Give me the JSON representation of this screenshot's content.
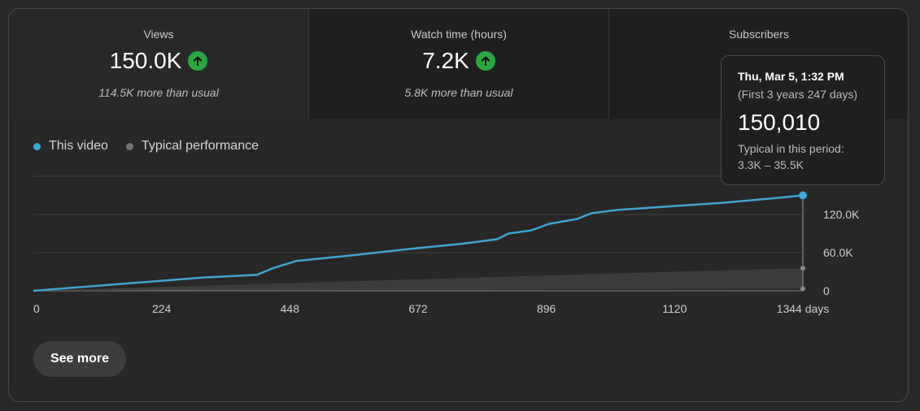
{
  "tabs": [
    {
      "label": "Views",
      "value": "150.0K",
      "sub": "114.5K more than usual",
      "trend_icon": "arrow-up-circle-icon"
    },
    {
      "label": "Watch time (hours)",
      "value": "7.2K",
      "sub": "5.8K more than usual",
      "trend_icon": "arrow-up-circle-icon"
    },
    {
      "label": "Subscribers",
      "value": "",
      "sub": ""
    }
  ],
  "legend": {
    "this_video": "This video",
    "typical": "Typical performance"
  },
  "colors": {
    "this_video": "#3ea6d6",
    "typical": "#757575",
    "typical_band": "#3c3c3c",
    "positive": "#2ba640"
  },
  "tooltip": {
    "date": "Thu, Mar 5, 1:32 PM",
    "period": "(First 3 years 247 days)",
    "value": "150,010",
    "typical_label": "Typical in this period:",
    "typical_range": "3.3K – 35.5K"
  },
  "see_more": "See more",
  "chart_data": {
    "type": "line",
    "x_unit": "days",
    "x_ticks": [
      "0",
      "224",
      "448",
      "672",
      "896",
      "1120",
      "1344 days"
    ],
    "x_tick_values": [
      0,
      224,
      448,
      672,
      896,
      1120,
      1344
    ],
    "y_ticks": [
      "0",
      "60.0K",
      "120.0K"
    ],
    "y_tick_values": [
      0,
      60000,
      120000
    ],
    "xlim": [
      0,
      1344
    ],
    "ylim": [
      0,
      180000
    ],
    "grid": true,
    "series": [
      {
        "name": "This video",
        "x": [
          0,
          100,
          200,
          300,
          390,
          420,
          460,
          560,
          660,
          750,
          810,
          830,
          870,
          900,
          950,
          975,
          1020,
          1100,
          1200,
          1300,
          1344
        ],
        "y": [
          0,
          7000,
          14000,
          21000,
          25000,
          36000,
          47000,
          56000,
          66000,
          74000,
          81000,
          90000,
          95000,
          105000,
          113000,
          122000,
          127000,
          132000,
          138000,
          146000,
          150010
        ]
      }
    ],
    "typical_band": {
      "name": "Typical performance",
      "x": [
        0,
        224,
        448,
        672,
        896,
        1120,
        1344
      ],
      "low": [
        0,
        600,
        1200,
        1800,
        2400,
        2900,
        3300
      ],
      "high": [
        0,
        6000,
        12000,
        18000,
        24000,
        30000,
        35500
      ]
    }
  }
}
